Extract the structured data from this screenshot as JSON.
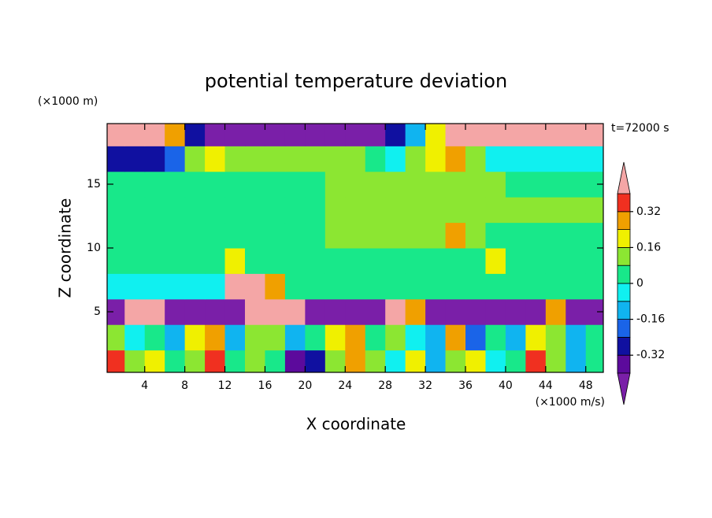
{
  "chart_data": {
    "type": "contour",
    "title": "potential temperature deviation",
    "x_label": "X coordinate",
    "y_label": "Z coordinate",
    "x_units": "(×1000 m/s)",
    "y_units": "(×1000 m)",
    "annotation": "t=72000 s",
    "xlim": [
      0.25,
      49.75
    ],
    "ylim": [
      0.25,
      19.75
    ],
    "xticks": [
      4,
      8,
      12,
      16,
      20,
      24,
      28,
      32,
      36,
      40,
      44,
      48
    ],
    "yticks": [
      5,
      10,
      15
    ],
    "x": [
      1,
      3,
      5,
      7,
      9,
      11,
      13,
      15,
      17,
      19,
      21,
      23,
      25,
      27,
      29,
      31,
      33,
      35,
      37,
      39,
      41,
      43,
      45,
      47,
      49
    ],
    "y": [
      1,
      3,
      5,
      7,
      9,
      11,
      13,
      15,
      17,
      19
    ],
    "z": [
      [
        0.35,
        0.1,
        0.2,
        0.0,
        0.15,
        0.35,
        0.05,
        0.1,
        0.05,
        -0.35,
        -0.3,
        0.1,
        0.3,
        0.1,
        -0.05,
        0.2,
        -0.1,
        0.1,
        0.2,
        -0.05,
        0.05,
        0.35,
        0.1,
        -0.1,
        0.05
      ],
      [
        0.1,
        -0.05,
        0.05,
        -0.1,
        0.2,
        0.3,
        -0.1,
        0.1,
        0.15,
        -0.15,
        0.0,
        0.2,
        0.25,
        0.0,
        0.1,
        -0.05,
        -0.1,
        0.3,
        -0.2,
        0.0,
        -0.1,
        0.2,
        0.1,
        -0.1,
        0.05
      ],
      [
        -0.45,
        0.45,
        0.45,
        -0.45,
        -0.45,
        -0.45,
        -0.45,
        0.45,
        0.45,
        0.45,
        -0.45,
        -0.45,
        -0.45,
        -0.45,
        0.45,
        0.3,
        -0.45,
        -0.45,
        -0.45,
        -0.45,
        -0.45,
        -0.45,
        0.3,
        -0.45,
        -0.45
      ],
      [
        -0.04,
        -0.04,
        -0.04,
        -0.04,
        -0.04,
        -0.04,
        0.45,
        0.45,
        0.3,
        0.03,
        0.03,
        0.03,
        0.03,
        0.03,
        0.03,
        0.03,
        0.03,
        0.03,
        0.03,
        0.03,
        0.03,
        0.03,
        0.03,
        0.03,
        0.03
      ],
      [
        0.04,
        0.04,
        0.04,
        0.04,
        0.04,
        0.04,
        0.2,
        0.04,
        0.04,
        0.04,
        0.04,
        0.04,
        0.04,
        0.04,
        0.04,
        0.04,
        0.04,
        0.04,
        0.04,
        0.2,
        0.04,
        0.04,
        0.04,
        0.04,
        0.04
      ],
      [
        0.04,
        0.04,
        0.04,
        0.04,
        0.04,
        0.04,
        0.04,
        0.04,
        0.04,
        0.04,
        0.04,
        0.1,
        0.1,
        0.1,
        0.1,
        0.1,
        0.1,
        0.3,
        0.1,
        0.04,
        0.04,
        0.04,
        0.04,
        0.04,
        0.04
      ],
      [
        0.04,
        0.04,
        0.04,
        0.04,
        0.04,
        0.04,
        0.04,
        0.04,
        0.04,
        0.04,
        0.04,
        0.1,
        0.1,
        0.1,
        0.1,
        0.1,
        0.1,
        0.1,
        0.1,
        0.1,
        0.1,
        0.1,
        0.1,
        0.1,
        0.1
      ],
      [
        0.04,
        0.04,
        0.04,
        0.04,
        0.04,
        0.04,
        0.04,
        0.04,
        0.04,
        0.04,
        0.04,
        0.1,
        0.1,
        0.1,
        0.1,
        0.1,
        0.1,
        0.1,
        0.1,
        0.1,
        0.04,
        0.04,
        0.04,
        0.04,
        0.04
      ],
      [
        -0.3,
        -0.3,
        -0.3,
        -0.2,
        0.1,
        0.2,
        0.1,
        0.15,
        0.15,
        0.15,
        0.15,
        0.15,
        0.15,
        0.05,
        -0.05,
        0.1,
        0.2,
        0.25,
        0.1,
        -0.05,
        -0.05,
        -0.05,
        -0.05,
        -0.05,
        -0.05
      ],
      [
        0.45,
        0.45,
        0.45,
        0.3,
        -0.3,
        -0.45,
        -0.45,
        -0.45,
        -0.45,
        -0.45,
        -0.45,
        -0.45,
        -0.45,
        -0.45,
        -0.3,
        -0.1,
        0.2,
        0.45,
        0.45,
        0.45,
        0.45,
        0.45,
        0.45,
        0.45,
        0.45
      ]
    ],
    "levels": [
      -0.4,
      -0.32,
      -0.24,
      -0.16,
      -0.08,
      0,
      0.08,
      0.16,
      0.24,
      0.32,
      0.4
    ],
    "colors": [
      "#7a1fa8",
      "#5c0a9c",
      "#1010a0",
      "#1a64e8",
      "#10b4f0",
      "#10f0f0",
      "#18e88a",
      "#8ce632",
      "#f0f000",
      "#f0a000",
      "#f03020",
      "#f4a6a6"
    ],
    "colorbar_ticks": [
      -0.32,
      -0.16,
      0,
      0.16,
      0.32
    ]
  }
}
